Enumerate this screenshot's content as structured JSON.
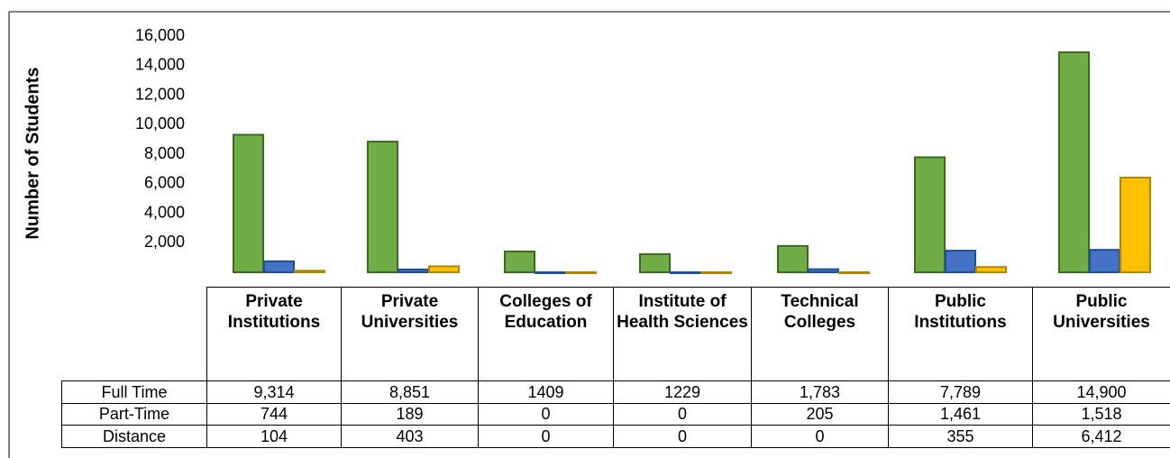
{
  "chart_data": {
    "type": "bar",
    "y_label": "Number of Students",
    "categories": [
      "Private Institutions",
      "Private Universities",
      "Colleges of Education",
      "Institute of Health Sciences",
      "Technical Colleges",
      "Public Institutions",
      "Public Universities"
    ],
    "series": [
      {
        "name": "Full Time",
        "color": "#70ad47",
        "values": [
          9314,
          8851,
          1409,
          1229,
          1783,
          7789,
          14900
        ],
        "value_labels": [
          "9,314",
          "8,851",
          "1409",
          "1229",
          "1,783",
          "7,789",
          "14,900"
        ]
      },
      {
        "name": "Part-Time",
        "color": "#4472c4",
        "values": [
          744,
          189,
          0,
          0,
          205,
          1461,
          1518
        ],
        "value_labels": [
          "744",
          "189",
          "0",
          "0",
          "205",
          "1,461",
          "1,518"
        ]
      },
      {
        "name": "Distance",
        "color": "#ffc000",
        "values": [
          104,
          403,
          0,
          0,
          0,
          355,
          6412
        ],
        "value_labels": [
          "104",
          "403",
          "0",
          "0",
          "0",
          "355",
          "6,412"
        ]
      }
    ],
    "ylim": [
      0,
      16000
    ],
    "yticks": [
      {
        "value": 2000,
        "label": "2,000"
      },
      {
        "value": 4000,
        "label": "4,000"
      },
      {
        "value": 6000,
        "label": "6,000"
      },
      {
        "value": 8000,
        "label": "8,000"
      },
      {
        "value": 10000,
        "label": "10,000"
      },
      {
        "value": 12000,
        "label": "12,000"
      },
      {
        "value": 14000,
        "label": "14,000"
      },
      {
        "value": 16000,
        "label": "16,000"
      }
    ]
  }
}
